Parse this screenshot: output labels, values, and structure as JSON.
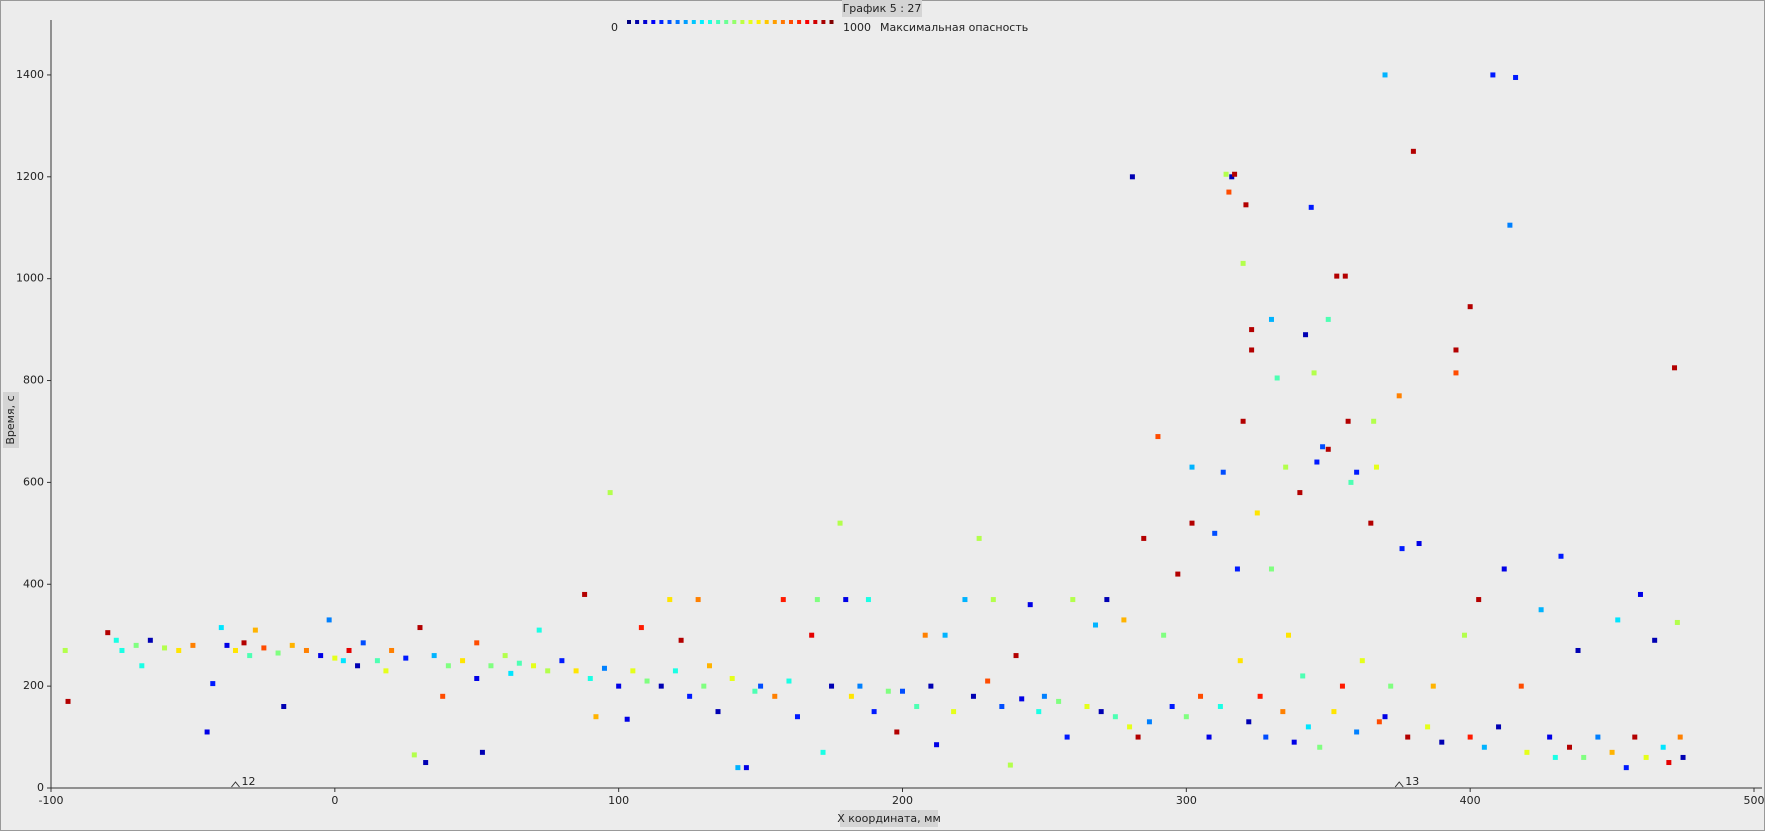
{
  "chart_data": {
    "type": "scatter",
    "title": "График 5 : 27",
    "x_label": "X координата, мм",
    "y_label": "Время, с",
    "legend_title": "Максимальная опасность",
    "colormap": "jet",
    "clim": [
      0,
      1000
    ],
    "xlim": [
      -100,
      500
    ],
    "xticks": [
      -100,
      0,
      100,
      200,
      300,
      400,
      500
    ],
    "ylim": [
      0,
      1500
    ],
    "yticks": [
      0,
      200,
      400,
      600,
      800,
      1000,
      1200,
      1400
    ],
    "annotations": [
      {
        "x": -35,
        "text": "12"
      },
      {
        "x": 375,
        "text": "13"
      }
    ],
    "x": [
      -95,
      -94,
      -80,
      -77,
      -75,
      -70,
      -68,
      -65,
      -60,
      -55,
      -50,
      -45,
      -43,
      -40,
      -38,
      -35,
      -32,
      -30,
      -28,
      -25,
      -20,
      -18,
      -15,
      -10,
      -5,
      -2,
      0,
      3,
      5,
      8,
      10,
      15,
      18,
      20,
      25,
      28,
      30,
      32,
      35,
      38,
      40,
      45,
      50,
      50,
      52,
      55,
      60,
      62,
      65,
      70,
      72,
      75,
      80,
      85,
      88,
      90,
      92,
      95,
      97,
      100,
      103,
      105,
      108,
      110,
      115,
      118,
      120,
      122,
      125,
      128,
      130,
      132,
      135,
      140,
      142,
      145,
      148,
      150,
      155,
      158,
      160,
      163,
      168,
      170,
      172,
      175,
      178,
      180,
      182,
      185,
      188,
      190,
      195,
      198,
      200,
      205,
      208,
      210,
      212,
      215,
      218,
      222,
      225,
      227,
      230,
      232,
      235,
      238,
      240,
      242,
      245,
      248,
      250,
      255,
      258,
      260,
      265,
      268,
      270,
      272,
      275,
      278,
      280,
      281,
      283,
      285,
      287,
      290,
      292,
      295,
      297,
      300,
      302,
      302,
      305,
      308,
      310,
      312,
      313,
      314,
      315,
      316,
      317,
      318,
      319,
      320,
      320,
      321,
      322,
      323,
      323,
      325,
      326,
      328,
      330,
      330,
      332,
      334,
      335,
      336,
      338,
      340,
      341,
      342,
      343,
      344,
      345,
      346,
      347,
      348,
      350,
      350,
      352,
      353,
      355,
      356,
      357,
      358,
      360,
      360,
      362,
      365,
      366,
      367,
      368,
      370,
      370,
      372,
      375,
      376,
      378,
      380,
      382,
      385,
      387,
      390,
      395,
      395,
      398,
      400,
      400,
      403,
      405,
      408,
      410,
      412,
      414,
      416,
      418,
      420,
      425,
      428,
      430,
      432,
      435,
      438,
      440,
      445,
      450,
      452,
      455,
      458,
      460,
      462,
      465,
      468,
      470,
      472,
      473,
      474,
      475
    ],
    "values": [
      270,
      170,
      305,
      290,
      270,
      280,
      240,
      290,
      275,
      270,
      280,
      110,
      205,
      315,
      280,
      270,
      285,
      260,
      310,
      275,
      265,
      160,
      280,
      270,
      260,
      330,
      255,
      250,
      270,
      240,
      285,
      250,
      230,
      270,
      255,
      65,
      315,
      50,
      260,
      180,
      240,
      250,
      215,
      285,
      70,
      240,
      260,
      225,
      245,
      240,
      310,
      230,
      250,
      230,
      380,
      215,
      140,
      235,
      580,
      200,
      135,
      230,
      315,
      210,
      200,
      370,
      230,
      290,
      180,
      370,
      200,
      240,
      150,
      215,
      40,
      40,
      190,
      200,
      180,
      370,
      210,
      140,
      300,
      370,
      70,
      200,
      520,
      370,
      180,
      200,
      370,
      150,
      190,
      110,
      190,
      160,
      300,
      200,
      85,
      300,
      150,
      370,
      180,
      490,
      210,
      370,
      160,
      45,
      260,
      175,
      360,
      150,
      180,
      170,
      100,
      370,
      160,
      320,
      150,
      370,
      140,
      330,
      120,
      1200,
      100,
      490,
      130,
      690,
      300,
      160,
      420,
      140,
      520,
      630,
      180,
      100,
      500,
      160,
      620,
      1205,
      1170,
      1200,
      1205,
      430,
      250,
      1030,
      720,
      1145,
      130,
      900,
      860,
      540,
      180,
      100,
      920,
      430,
      805,
      150,
      630,
      300,
      90,
      580,
      220,
      890,
      120,
      1140,
      815,
      640,
      80,
      670,
      665,
      920,
      150,
      1005,
      200,
      1005,
      720,
      600,
      620,
      110,
      250,
      520,
      720,
      630,
      130,
      1400,
      140,
      200,
      770,
      470,
      100,
      1250,
      480,
      120,
      200,
      90,
      860,
      815,
      300,
      945,
      100,
      370,
      80,
      1400,
      120,
      430,
      1105,
      1395,
      200,
      70,
      350,
      100,
      60,
      455,
      80,
      270,
      60,
      100,
      70,
      330,
      40,
      100,
      380,
      60,
      290,
      80,
      50,
      825,
      325,
      100,
      60
    ],
    "danger": [
      550,
      950,
      950,
      400,
      400,
      500,
      400,
      50,
      550,
      650,
      750,
      100,
      150,
      350,
      100,
      650,
      950,
      450,
      700,
      800,
      500,
      50,
      700,
      750,
      100,
      250,
      600,
      350,
      900,
      50,
      200,
      450,
      600,
      750,
      150,
      550,
      950,
      50,
      300,
      800,
      500,
      650,
      100,
      800,
      50,
      500,
      550,
      350,
      450,
      600,
      400,
      550,
      150,
      650,
      950,
      400,
      700,
      250,
      550,
      100,
      100,
      600,
      850,
      500,
      50,
      650,
      400,
      950,
      150,
      750,
      500,
      700,
      50,
      600,
      300,
      100,
      450,
      200,
      750,
      850,
      400,
      150,
      900,
      500,
      400,
      50,
      550,
      100,
      650,
      250,
      400,
      150,
      500,
      950,
      200,
      450,
      750,
      50,
      100,
      300,
      600,
      300,
      50,
      550,
      800,
      550,
      200,
      550,
      950,
      100,
      100,
      400,
      250,
      500,
      150,
      550,
      600,
      300,
      50,
      50,
      450,
      700,
      600,
      50,
      950,
      950,
      250,
      800,
      500,
      150,
      950,
      500,
      950,
      300,
      800,
      100,
      200,
      400,
      200,
      550,
      800,
      50,
      950,
      150,
      650,
      550,
      950,
      950,
      50,
      950,
      950,
      650,
      850,
      200,
      300,
      500,
      450,
      750,
      550,
      650,
      100,
      950,
      450,
      50,
      350,
      150,
      550,
      150,
      500,
      200,
      950,
      450,
      650,
      950,
      850,
      950,
      950,
      450,
      150,
      250,
      600,
      950,
      550,
      600,
      800,
      300,
      100,
      500,
      750,
      150,
      950,
      950,
      100,
      600,
      700,
      50,
      950,
      800,
      550,
      950,
      850,
      950,
      300,
      150,
      50,
      100,
      250,
      150,
      800,
      600,
      300,
      100,
      400,
      150,
      950,
      50,
      500,
      250,
      700,
      350,
      150,
      950,
      100,
      600,
      50,
      350,
      900,
      950,
      550,
      750,
      50
    ]
  }
}
